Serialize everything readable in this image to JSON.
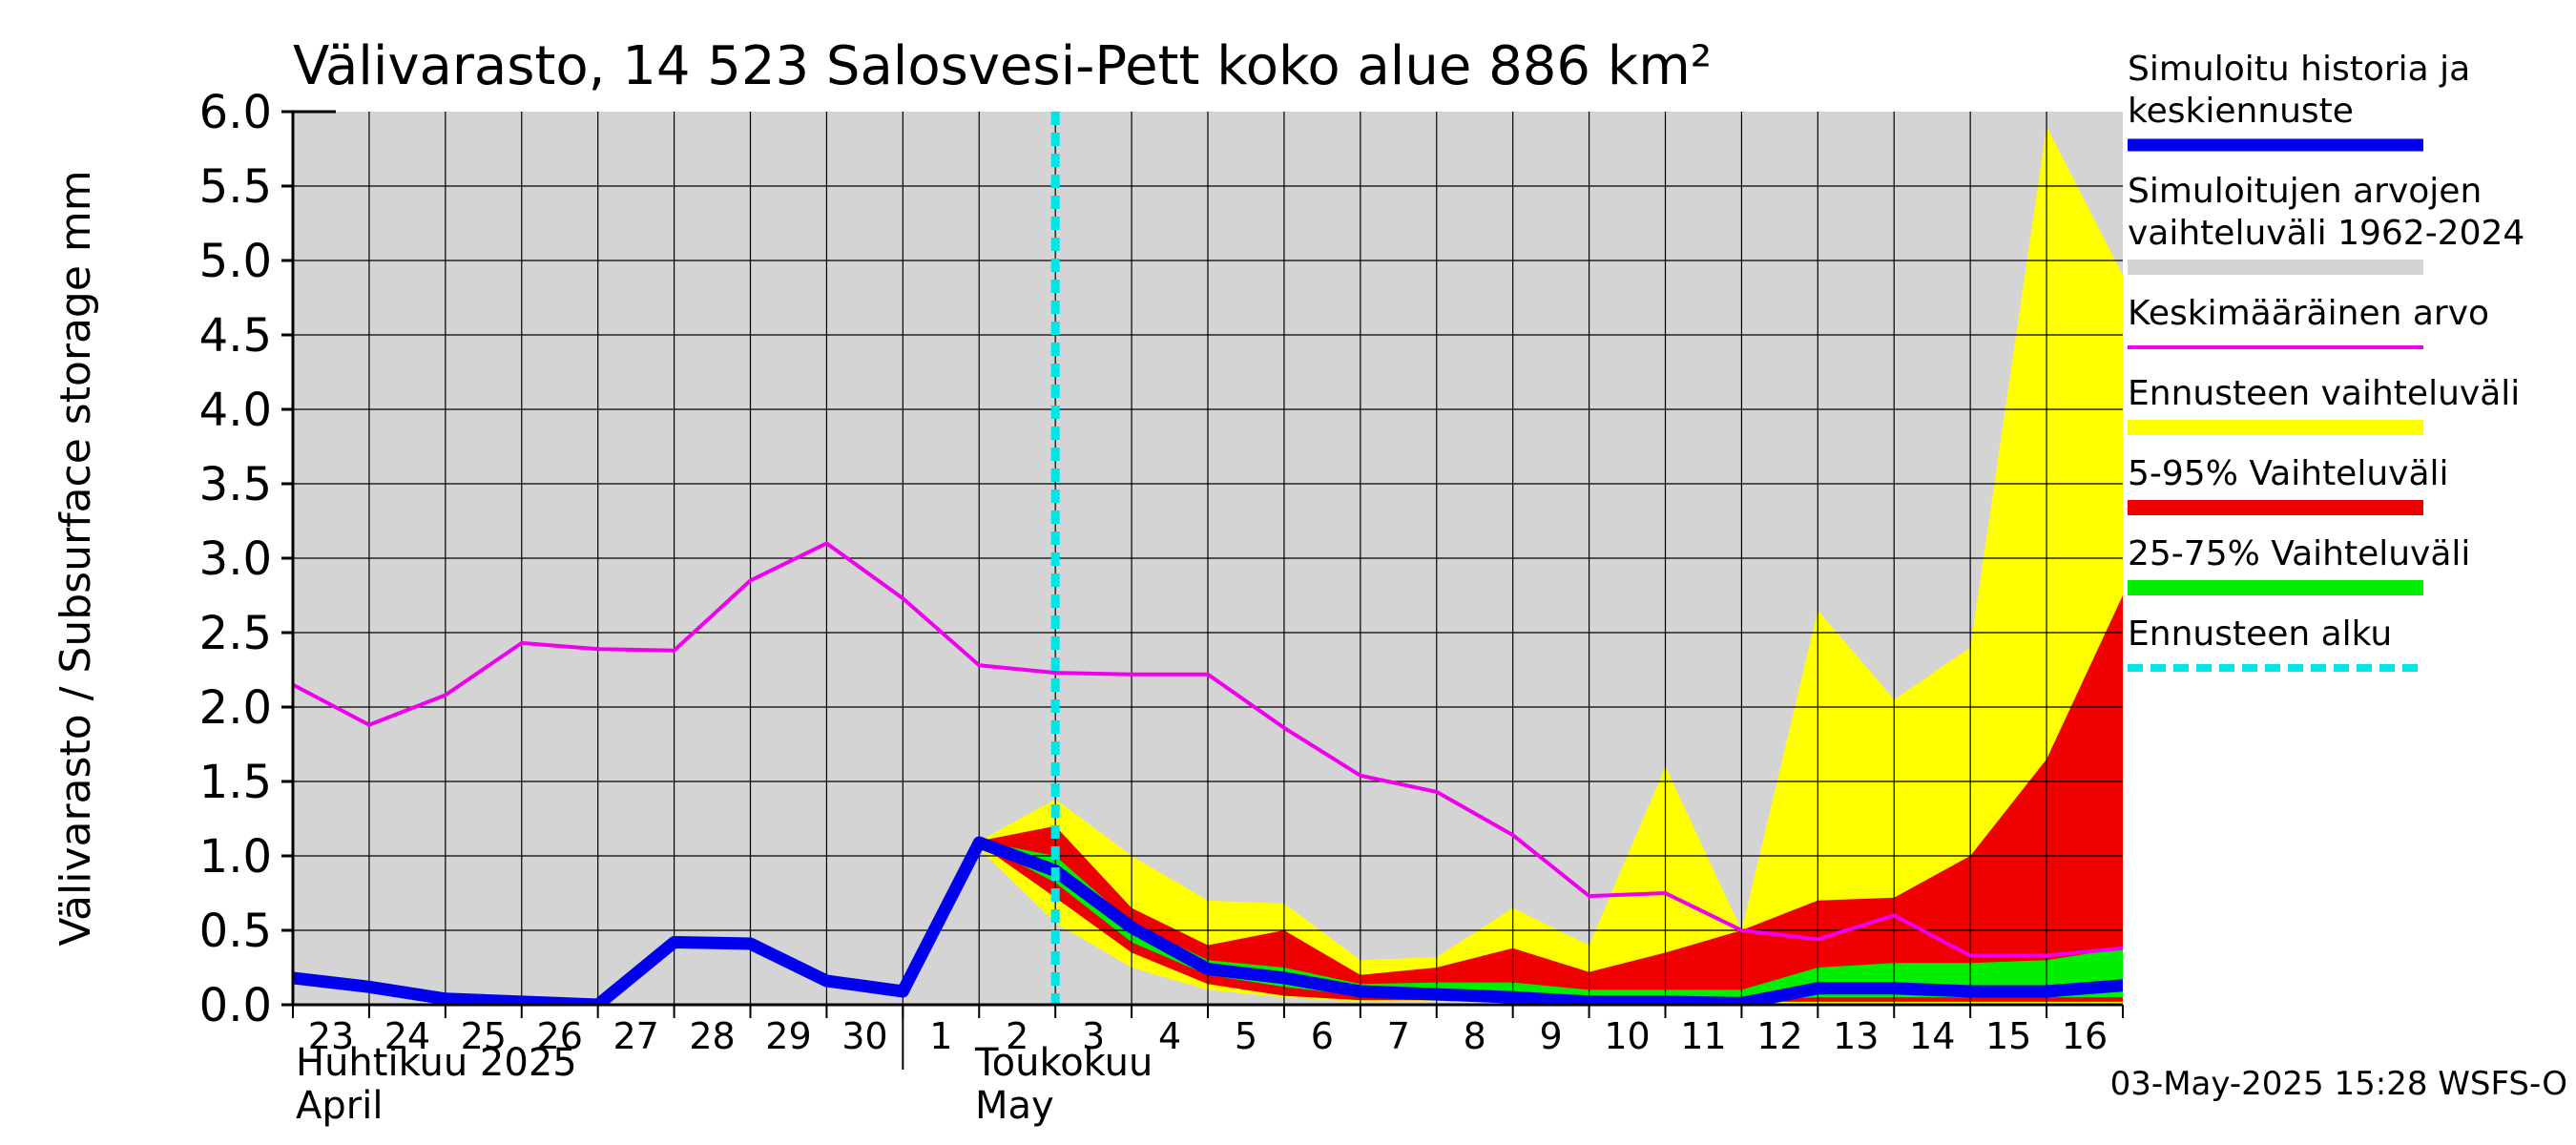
{
  "title": "Välivarasto, 14 523 Salosvesi-Pett koko alue 886 km²",
  "footer": "03-May-2025 15:28 WSFS-O",
  "month_labels": {
    "april_fi": "Huhtikuu  2025",
    "april_en": "April",
    "may_fi": "Toukokuu",
    "may_en": "May"
  },
  "legend": [
    {
      "label": "Simuloitu historia ja keskiennuste",
      "color": "#0000ee",
      "style": "thick"
    },
    {
      "label": "Simuloitujen arvojen vaihteluväli 1962-2024",
      "color": "#d4d4d4",
      "style": "band"
    },
    {
      "label": "Keskimääräinen arvo",
      "color": "#ee00ee",
      "style": "line"
    },
    {
      "label": "Ennusteen vaihteluväli",
      "color": "#ffff00",
      "style": "band"
    },
    {
      "label": "5-95% Vaihteluväli",
      "color": "#ee0000",
      "style": "band"
    },
    {
      "label": "25-75% Vaihteluväli",
      "color": "#00ee00",
      "style": "band"
    },
    {
      "label": "Ennusteen alku",
      "color": "#00e5e5",
      "style": "dashed"
    }
  ],
  "chart_data": {
    "type": "area",
    "ylabel": "Välivarasto / Subsurface storage  mm",
    "ylim": [
      0,
      6
    ],
    "yticks": [
      "0.0",
      "0.5",
      "1.0",
      "1.5",
      "2.0",
      "2.5",
      "3.0",
      "3.5",
      "4.0",
      "4.5",
      "5.0",
      "5.5",
      "6.0"
    ],
    "x_tick_labels": [
      "23",
      "24",
      "25",
      "26",
      "27",
      "28",
      "29",
      "30",
      "1",
      "2",
      "3",
      "4",
      "5",
      "6",
      "7",
      "8",
      "9",
      "10",
      "11",
      "12",
      "13",
      "14",
      "15",
      "16"
    ],
    "x_dates": [
      "2025-04-23",
      "2025-04-24",
      "2025-04-25",
      "2025-04-26",
      "2025-04-27",
      "2025-04-28",
      "2025-04-29",
      "2025-04-30",
      "2025-05-01",
      "2025-05-02",
      "2025-05-03",
      "2025-05-04",
      "2025-05-05",
      "2025-05-06",
      "2025-05-07",
      "2025-05-08",
      "2025-05-09",
      "2025-05-10",
      "2025-05-11",
      "2025-05-12",
      "2025-05-13",
      "2025-05-14",
      "2025-05-15",
      "2025-05-16",
      "2025-05-17"
    ],
    "x_range": [
      "2025-04-23",
      "2025-05-17"
    ],
    "forecast_start": "2025-05-03",
    "grid": true,
    "legend_position": "right",
    "series": [
      {
        "name": "Simuloitujen arvojen vaihteluväli 1962-2024",
        "kind": "band",
        "color": "#d4d4d4",
        "lower": [
          0,
          0,
          0,
          0,
          0,
          0,
          0,
          0,
          0,
          0,
          0,
          0,
          0,
          0,
          0,
          0,
          0,
          0,
          0,
          0,
          0,
          0,
          0,
          0,
          0
        ],
        "upper": [
          6,
          6,
          6,
          6,
          6,
          6,
          6,
          6,
          6,
          6,
          6,
          6,
          6,
          6,
          6,
          6,
          6,
          6,
          6,
          6,
          6,
          6,
          6,
          6,
          6
        ]
      },
      {
        "name": "Ennusteen vaihteluväli",
        "kind": "band",
        "color": "#ffff00",
        "x_start": 9,
        "lower": [
          1.05,
          0.55,
          0.25,
          0.1,
          0.05,
          0.02,
          0.02,
          0.02,
          0.01,
          0.01,
          0.01,
          0.01,
          0.01,
          0.01,
          0.01,
          0.01
        ],
        "upper": [
          1.1,
          1.38,
          1.0,
          0.7,
          0.68,
          0.3,
          0.32,
          0.65,
          0.4,
          1.6,
          0.5,
          2.65,
          2.05,
          2.4,
          5.9,
          4.9
        ]
      },
      {
        "name": "5-95% Vaihteluväli",
        "kind": "band",
        "color": "#ee0000",
        "x_start": 9,
        "lower": [
          1.08,
          0.72,
          0.35,
          0.14,
          0.06,
          0.03,
          0.03,
          0.02,
          0.02,
          0.02,
          0.02,
          0.02,
          0.02,
          0.02,
          0.02,
          0.02
        ],
        "upper": [
          1.1,
          1.2,
          0.65,
          0.4,
          0.5,
          0.2,
          0.25,
          0.38,
          0.22,
          0.35,
          0.5,
          0.7,
          0.72,
          1.0,
          1.65,
          2.75
        ]
      },
      {
        "name": "25-75% Vaihteluväli",
        "kind": "band",
        "color": "#00ee00",
        "x_start": 9,
        "lower": [
          1.09,
          0.82,
          0.42,
          0.2,
          0.12,
          0.06,
          0.06,
          0.05,
          0.03,
          0.03,
          0.03,
          0.05,
          0.05,
          0.05,
          0.05,
          0.05
        ],
        "upper": [
          1.1,
          1.0,
          0.55,
          0.3,
          0.25,
          0.14,
          0.15,
          0.15,
          0.1,
          0.1,
          0.1,
          0.25,
          0.28,
          0.28,
          0.3,
          0.38
        ]
      },
      {
        "name": "Keskimääräinen arvo",
        "kind": "line",
        "color": "#ee00ee",
        "y": [
          2.15,
          1.88,
          2.08,
          2.43,
          2.39,
          2.38,
          2.85,
          3.1,
          2.73,
          2.28,
          2.23,
          2.22,
          2.22,
          1.86,
          1.54,
          1.43,
          1.14,
          0.73,
          0.75,
          0.5,
          0.44,
          0.6,
          0.33,
          0.33,
          0.38
        ]
      },
      {
        "name": "Simuloitu historia ja keskiennuste",
        "kind": "line",
        "color": "#0000ee",
        "y": [
          0.18,
          0.12,
          0.04,
          0.02,
          0.0,
          0.42,
          0.41,
          0.16,
          0.09,
          1.09,
          0.9,
          0.52,
          0.24,
          0.18,
          0.09,
          0.07,
          0.05,
          0.02,
          0.02,
          0.01,
          0.11,
          0.11,
          0.09,
          0.09,
          0.13
        ]
      }
    ]
  }
}
